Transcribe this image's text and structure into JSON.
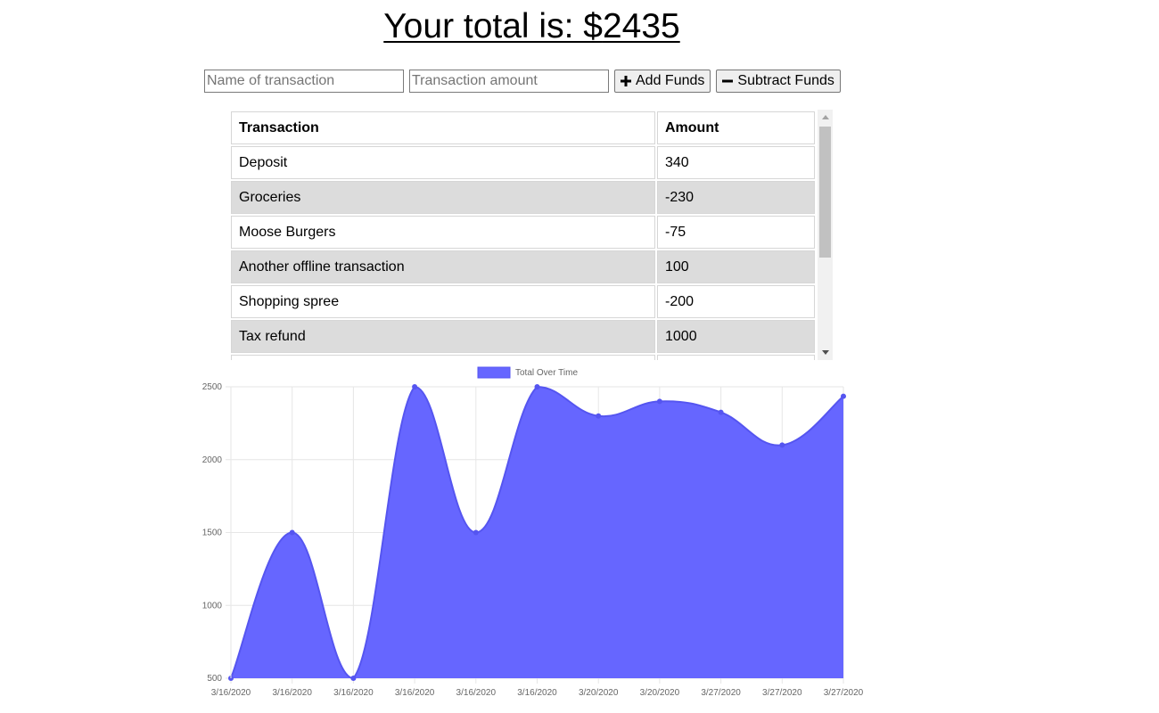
{
  "header": {
    "total_label": "Your total is: $",
    "total_value": "2435"
  },
  "form": {
    "name_placeholder": "Name of transaction",
    "amount_placeholder": "Transaction amount",
    "add_label": "Add Funds",
    "add_icon": "plus-icon",
    "subtract_label": "Subtract Funds",
    "subtract_icon": "minus-icon"
  },
  "table": {
    "headers": [
      "Transaction",
      "Amount"
    ],
    "rows": [
      {
        "name": "Deposit",
        "amount": "340"
      },
      {
        "name": "Groceries",
        "amount": "-230"
      },
      {
        "name": "Moose Burgers",
        "amount": "-75"
      },
      {
        "name": "Another offline transaction",
        "amount": "100"
      },
      {
        "name": "Shopping spree",
        "amount": "-200"
      },
      {
        "name": "Tax refund",
        "amount": "1000"
      }
    ]
  },
  "chart_data": {
    "type": "area",
    "legend": "Total Over Time",
    "legend_position": "top",
    "color": "#6666ff",
    "x": [
      "3/16/2020",
      "3/16/2020",
      "3/16/2020",
      "3/16/2020",
      "3/16/2020",
      "3/16/2020",
      "3/20/2020",
      "3/20/2020",
      "3/27/2020",
      "3/27/2020",
      "3/27/2020"
    ],
    "series": [
      {
        "name": "Total Over Time",
        "values": [
          500,
          1500,
          500,
          2500,
          1500,
          2500,
          2300,
          2400,
          2325,
          2100,
          2435
        ]
      }
    ],
    "ylim": [
      500,
      2500
    ],
    "yticks": [
      500,
      1000,
      1500,
      2000,
      2500
    ],
    "grid": true
  }
}
